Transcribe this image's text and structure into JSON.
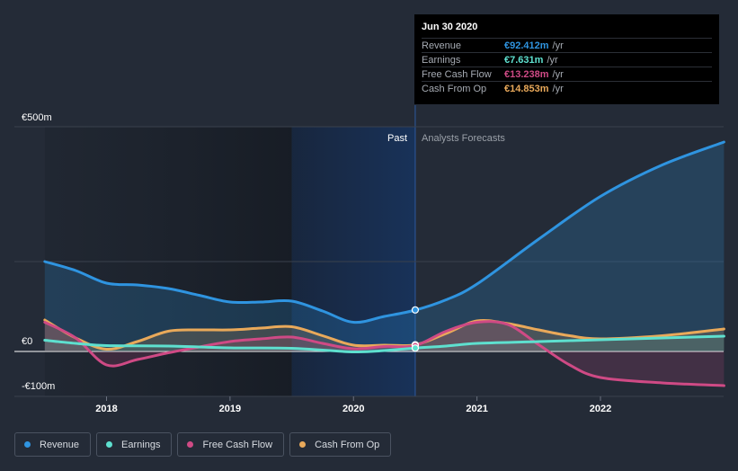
{
  "tooltip": {
    "date": "Jun 30 2020",
    "rows": [
      {
        "label": "Revenue",
        "value": "€92.412m",
        "unit": "/yr"
      },
      {
        "label": "Earnings",
        "value": "€7.631m",
        "unit": "/yr"
      },
      {
        "label": "Free Cash Flow",
        "value": "€13.238m",
        "unit": "/yr"
      },
      {
        "label": "Cash From Op",
        "value": "€14.853m",
        "unit": "/yr"
      }
    ]
  },
  "colors": {
    "revenue": "#2f94e0",
    "earnings": "#5ee0cf",
    "fcf": "#cf4a85",
    "cfo": "#e9a95a"
  },
  "chart_data": {
    "type": "line",
    "y_labels": {
      "top": "€500m",
      "zero": "€0",
      "bottom": "-€100m"
    },
    "ylim": [
      -100,
      500
    ],
    "xlim": [
      2017.5,
      2023.0
    ],
    "x_ticks": [
      2018,
      2019,
      2020,
      2021,
      2022
    ],
    "x_tick_labels": [
      "2018",
      "2019",
      "2020",
      "2021",
      "2022"
    ],
    "past_label": "Past",
    "forecast_label": "Analysts Forecasts",
    "divider_x": 2020.5,
    "highlight_start": 2019.5,
    "series": [
      {
        "name": "Revenue",
        "key": "revenue",
        "points": [
          [
            2017.5,
            200
          ],
          [
            2017.75,
            180
          ],
          [
            2018.0,
            152
          ],
          [
            2018.25,
            148
          ],
          [
            2018.5,
            140
          ],
          [
            2018.75,
            125
          ],
          [
            2019.0,
            110
          ],
          [
            2019.25,
            110
          ],
          [
            2019.5,
            112
          ],
          [
            2019.75,
            90
          ],
          [
            2020.0,
            65
          ],
          [
            2020.25,
            78
          ],
          [
            2020.5,
            92
          ],
          [
            2020.75,
            115
          ],
          [
            2021.0,
            150
          ],
          [
            2021.5,
            250
          ],
          [
            2022.0,
            345
          ],
          [
            2022.5,
            415
          ],
          [
            2023.0,
            466
          ]
        ]
      },
      {
        "name": "Earnings",
        "key": "earnings",
        "points": [
          [
            2017.5,
            25
          ],
          [
            2017.75,
            18
          ],
          [
            2018.0,
            13
          ],
          [
            2018.5,
            12
          ],
          [
            2019.0,
            8
          ],
          [
            2019.5,
            7
          ],
          [
            2020.0,
            -1
          ],
          [
            2020.25,
            2
          ],
          [
            2020.5,
            7.6
          ],
          [
            2020.75,
            12
          ],
          [
            2021.0,
            18
          ],
          [
            2021.5,
            22
          ],
          [
            2022.0,
            26
          ],
          [
            2022.5,
            30
          ],
          [
            2023.0,
            34
          ]
        ]
      },
      {
        "name": "Free Cash Flow",
        "key": "fcf",
        "points": [
          [
            2017.5,
            65
          ],
          [
            2017.75,
            30
          ],
          [
            2018.0,
            -30
          ],
          [
            2018.25,
            -18
          ],
          [
            2018.5,
            -3
          ],
          [
            2018.75,
            10
          ],
          [
            2019.0,
            22
          ],
          [
            2019.25,
            28
          ],
          [
            2019.5,
            32
          ],
          [
            2019.75,
            18
          ],
          [
            2020.0,
            6
          ],
          [
            2020.25,
            11
          ],
          [
            2020.5,
            13.2
          ],
          [
            2020.75,
            45
          ],
          [
            2021.0,
            65
          ],
          [
            2021.25,
            60
          ],
          [
            2021.5,
            15
          ],
          [
            2021.75,
            -30
          ],
          [
            2022.0,
            -58
          ],
          [
            2022.5,
            -70
          ],
          [
            2023.0,
            -76
          ]
        ]
      },
      {
        "name": "Cash From Op",
        "key": "cfo",
        "points": [
          [
            2017.5,
            70
          ],
          [
            2017.75,
            30
          ],
          [
            2018.0,
            5
          ],
          [
            2018.25,
            22
          ],
          [
            2018.5,
            45
          ],
          [
            2018.75,
            48
          ],
          [
            2019.0,
            48
          ],
          [
            2019.25,
            52
          ],
          [
            2019.5,
            55
          ],
          [
            2019.75,
            35
          ],
          [
            2020.0,
            14
          ],
          [
            2020.25,
            14
          ],
          [
            2020.5,
            14.9
          ],
          [
            2020.75,
            40
          ],
          [
            2021.0,
            68
          ],
          [
            2021.25,
            62
          ],
          [
            2021.5,
            48
          ],
          [
            2021.75,
            35
          ],
          [
            2022.0,
            28
          ],
          [
            2022.5,
            35
          ],
          [
            2023.0,
            50
          ]
        ]
      }
    ],
    "markers": [
      {
        "key": "revenue",
        "x": 2020.5,
        "y": 92.4
      },
      {
        "key": "cfo",
        "x": 2020.5,
        "y": 14.9
      },
      {
        "key": "fcf",
        "x": 2020.5,
        "y": 13.2
      },
      {
        "key": "earnings",
        "x": 2020.5,
        "y": 7.6
      }
    ]
  },
  "legend": [
    {
      "label": "Revenue",
      "key": "revenue"
    },
    {
      "label": "Earnings",
      "key": "earnings"
    },
    {
      "label": "Free Cash Flow",
      "key": "fcf"
    },
    {
      "label": "Cash From Op",
      "key": "cfo"
    }
  ]
}
